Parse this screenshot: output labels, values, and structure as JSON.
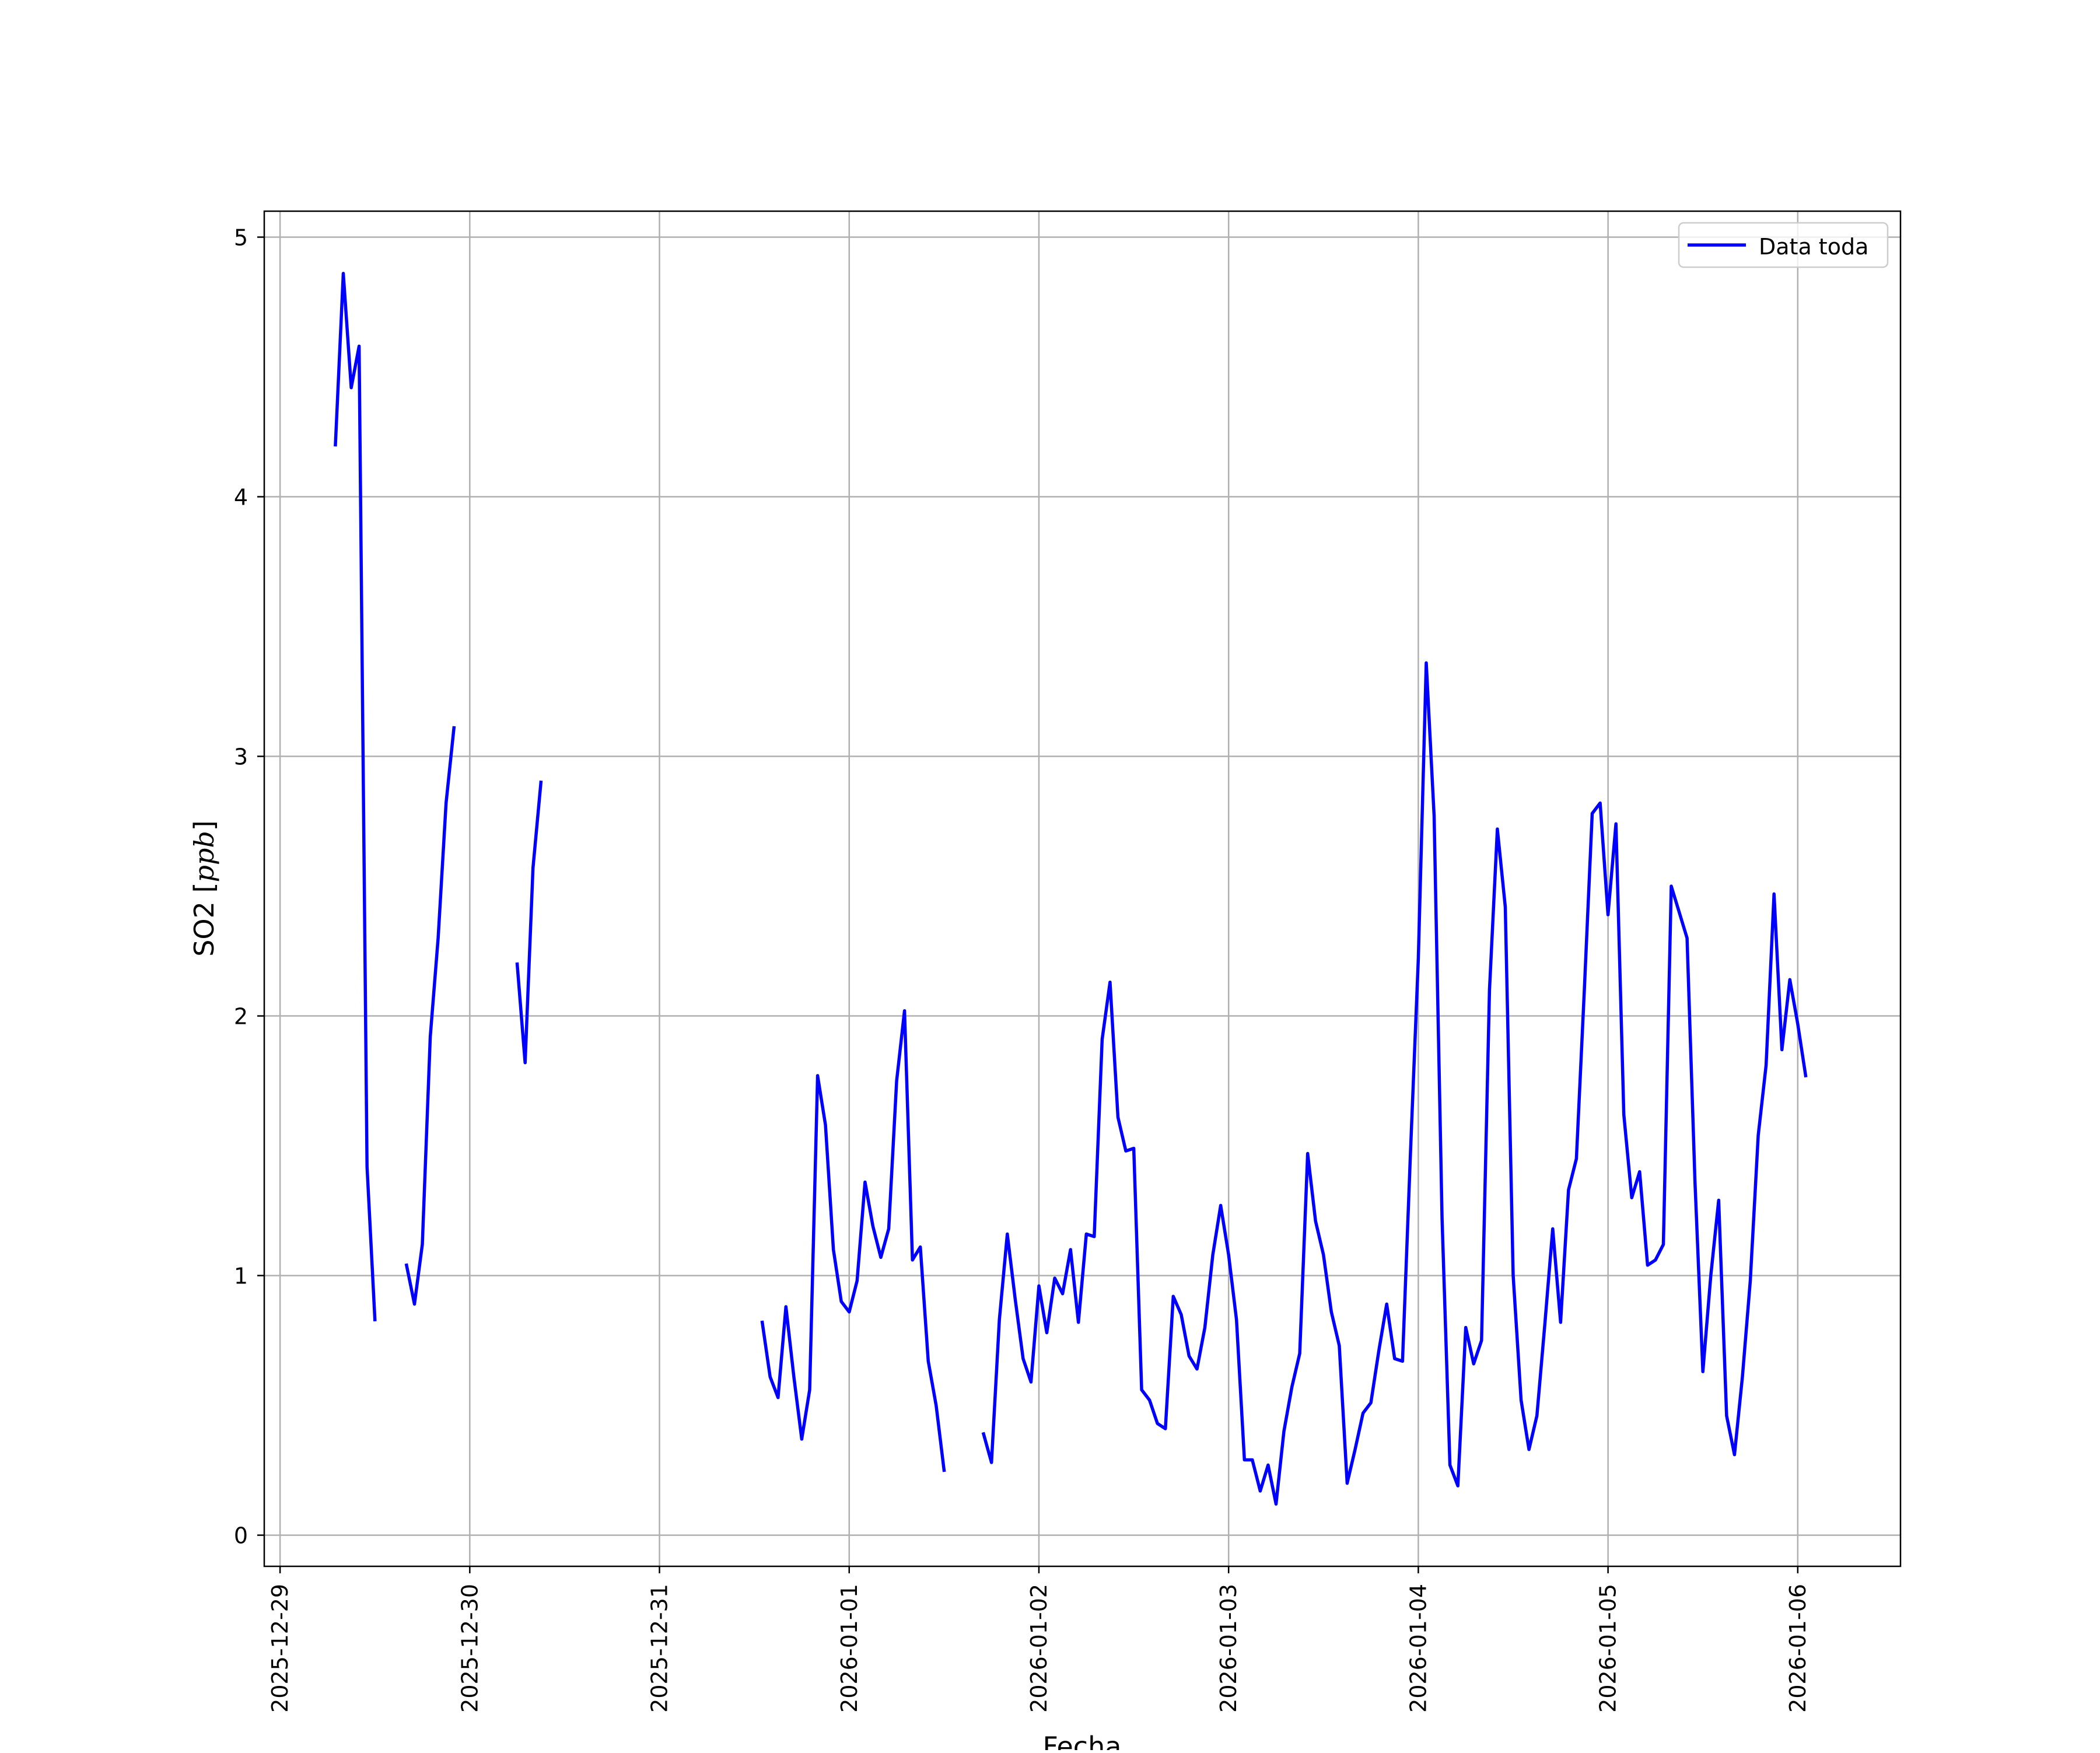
{
  "chart_data": {
    "type": "line",
    "title": "",
    "xlabel": "Fecha",
    "ylabel_plain": "SO2 [",
    "ylabel_math": "ppb",
    "ylabel_close": "]",
    "x_start": "2025-12-29 00:00",
    "x_step": "1h",
    "xlim": [
      "2025-12-28 22:00",
      "2026-01-06 13:00"
    ],
    "ylim": [
      -0.12,
      5.1
    ],
    "x_ticks": [
      "2025-12-29",
      "2025-12-30",
      "2025-12-31",
      "2026-01-01",
      "2026-01-02",
      "2026-01-03",
      "2026-01-04",
      "2026-01-05",
      "2026-01-06"
    ],
    "y_ticks": [
      "0",
      "1",
      "2",
      "3",
      "4",
      "5"
    ],
    "y_tick_values": [
      0,
      1,
      2,
      3,
      4,
      5
    ],
    "grid": true,
    "legend_position": "top-right",
    "series": [
      {
        "name": "Data toda",
        "color": "#0000ff",
        "values": [
          null,
          null,
          null,
          null,
          null,
          null,
          null,
          4.2,
          4.86,
          4.42,
          4.58,
          1.42,
          0.83,
          null,
          null,
          null,
          1.04,
          0.89,
          1.12,
          1.92,
          2.3,
          2.82,
          3.11,
          null,
          null,
          null,
          null,
          null,
          null,
          null,
          2.2,
          1.82,
          2.57,
          2.9,
          null,
          null,
          null,
          null,
          null,
          null,
          null,
          null,
          null,
          null,
          null,
          null,
          null,
          null,
          null,
          null,
          null,
          null,
          null,
          null,
          null,
          null,
          null,
          null,
          null,
          null,
          null,
          0.82,
          0.61,
          0.53,
          0.88,
          0.61,
          0.37,
          0.56,
          1.77,
          1.58,
          1.1,
          0.9,
          0.86,
          0.98,
          1.36,
          1.19,
          1.07,
          1.18,
          1.75,
          2.02,
          1.06,
          1.11,
          0.67,
          0.5,
          0.25,
          null,
          null,
          null,
          null,
          0.39,
          0.28,
          0.83,
          1.16,
          0.91,
          0.68,
          0.59,
          0.96,
          0.78,
          0.99,
          0.93,
          1.1,
          0.82,
          1.16,
          1.15,
          1.91,
          2.13,
          1.61,
          1.48,
          1.49,
          0.56,
          0.52,
          0.43,
          0.41,
          0.92,
          0.85,
          0.69,
          0.64,
          0.8,
          1.08,
          1.27,
          1.08,
          0.83,
          0.29,
          0.29,
          0.17,
          0.27,
          0.12,
          0.4,
          0.57,
          0.7,
          1.47,
          1.21,
          1.08,
          0.86,
          0.73,
          0.2,
          0.33,
          0.47,
          0.51,
          0.71,
          0.89,
          0.68,
          0.67,
          1.47,
          2.22,
          3.36,
          2.77,
          1.22,
          0.27,
          0.19,
          0.8,
          0.66,
          0.75,
          2.1,
          2.72,
          2.42,
          1.0,
          0.52,
          0.33,
          0.46,
          0.81,
          1.18,
          0.82,
          1.33,
          1.45,
          2.1,
          2.78,
          2.82,
          2.39,
          2.74,
          1.62,
          1.3,
          1.4,
          1.04,
          1.06,
          1.12,
          2.5,
          2.4,
          2.3,
          1.36,
          0.63,
          1.0,
          1.29,
          0.46,
          0.31,
          0.61,
          0.98,
          1.54,
          1.81,
          2.47,
          1.87,
          2.14,
          1.97,
          1.77
        ]
      }
    ]
  }
}
